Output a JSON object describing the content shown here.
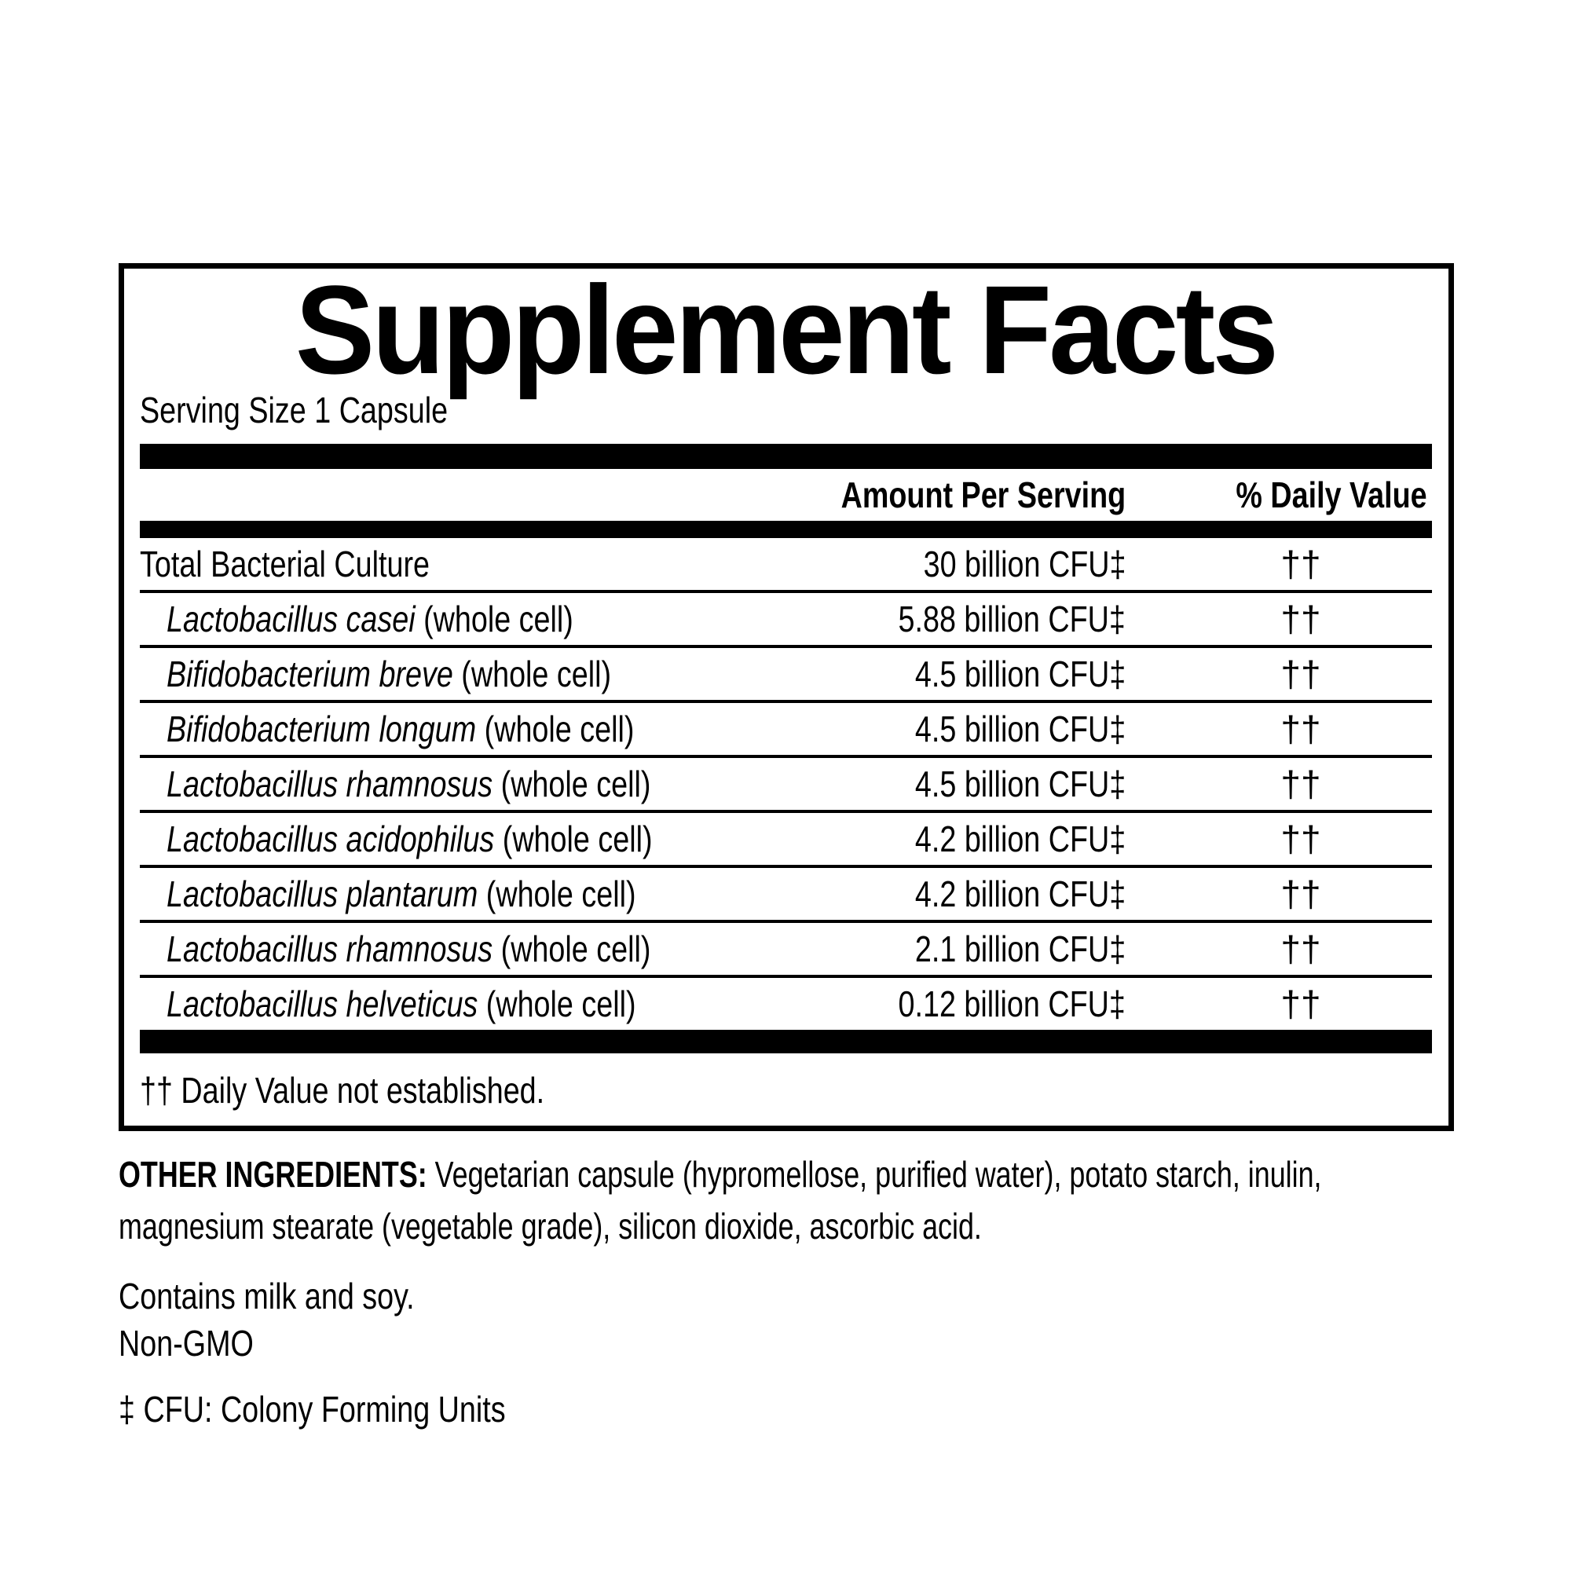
{
  "colors": {
    "ink": "#000000",
    "paper": "#ffffff"
  },
  "label": {
    "title": "Supplement Facts",
    "serving_size": "Serving Size 1 Capsule",
    "columns": {
      "amount": "Amount Per Serving",
      "daily_value": "% Daily Value"
    },
    "rows": [
      {
        "sci": "",
        "rest": "Total Bacterial Culture",
        "amount": "30 billion CFU‡",
        "dv": "††"
      },
      {
        "sci": "Lactobacillus casei",
        "rest": " (whole cell)",
        "amount": "5.88 billion CFU‡",
        "dv": "††"
      },
      {
        "sci": "Bifidobacterium breve",
        "rest": " (whole cell)",
        "amount": "4.5 billion CFU‡",
        "dv": "††"
      },
      {
        "sci": "Bifidobacterium longum",
        "rest": " (whole cell)",
        "amount": "4.5 billion CFU‡",
        "dv": "††"
      },
      {
        "sci": "Lactobacillus rhamnosus",
        "rest": " (whole cell)",
        "amount": "4.5 billion CFU‡",
        "dv": "††"
      },
      {
        "sci": "Lactobacillus acidophilus",
        "rest": " (whole cell)",
        "amount": "4.2 billion CFU‡",
        "dv": "††"
      },
      {
        "sci": "Lactobacillus plantarum",
        "rest": " (whole cell)",
        "amount": "4.2 billion CFU‡",
        "dv": "††"
      },
      {
        "sci": "Lactobacillus rhamnosus",
        "rest": " (whole cell)",
        "amount": "2.1 billion CFU‡",
        "dv": "††"
      },
      {
        "sci": "Lactobacillus helveticus",
        "rest": " (whole cell)",
        "amount": "0.12 billion CFU‡",
        "dv": "††"
      }
    ],
    "footnote": "†† Daily Value not established."
  },
  "below": {
    "other_ingredients_label": "OTHER INGREDIENTS:",
    "other_ingredients_line1": " Vegetarian capsule (hypromellose, purified water), potato starch, inulin,",
    "other_ingredients_line2": "magnesium stearate (vegetable grade), silicon dioxide, ascorbic acid.",
    "contains": "Contains milk and soy.",
    "non_gmo": "Non-GMO",
    "cfu_note": "‡ CFU: Colony Forming Units"
  }
}
